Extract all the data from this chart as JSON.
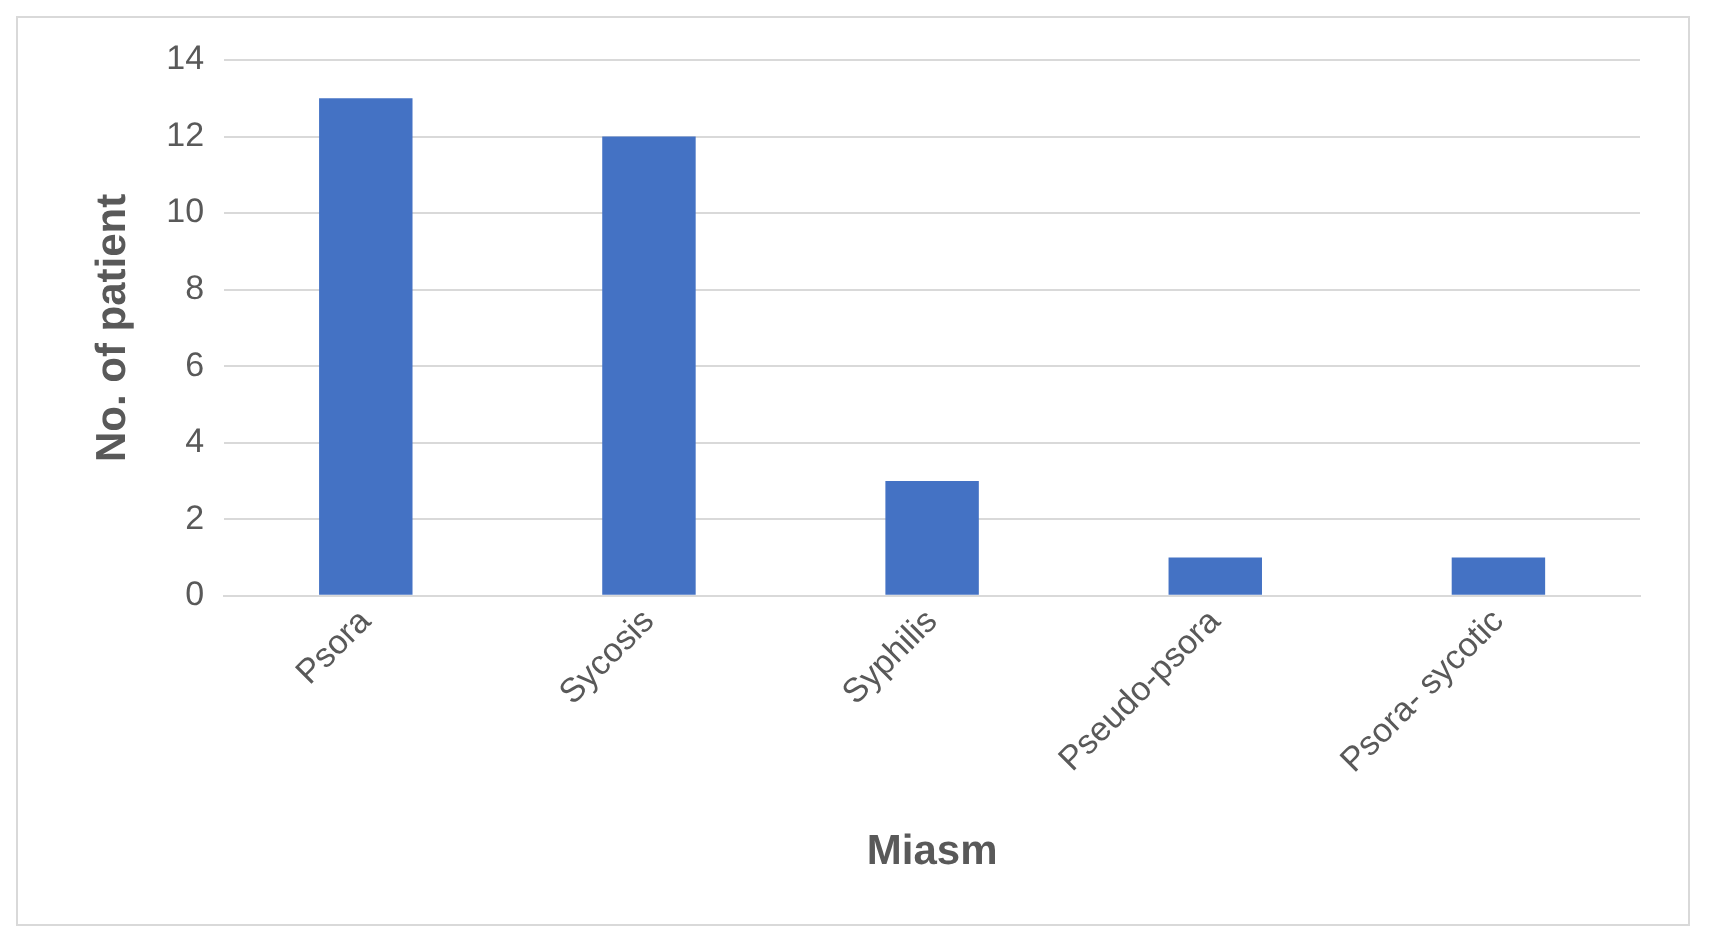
{
  "chart_data": {
    "type": "bar",
    "xlabel": "Miasm",
    "ylabel": "No. of patient",
    "categories": [
      "Psora",
      "Sycosis",
      "Syphilis",
      "Pseudo-psora",
      "Psora- sycotic"
    ],
    "values": [
      13,
      12,
      3,
      1,
      1
    ],
    "color": "#4472c4",
    "ylim": [
      0,
      14
    ],
    "yticks": [
      0,
      2,
      4,
      6,
      8,
      10,
      12,
      14
    ],
    "grid": "y",
    "legend": false
  }
}
